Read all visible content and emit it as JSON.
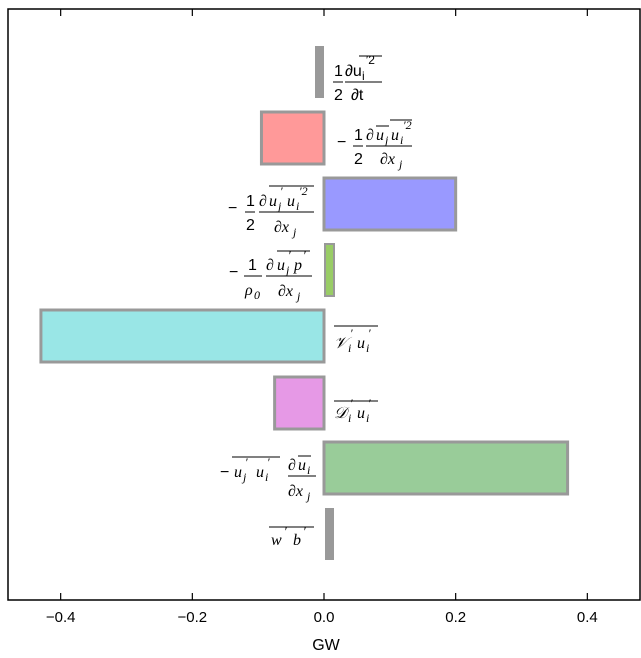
{
  "chart_data": {
    "type": "bar",
    "orientation": "horizontal",
    "xlabel": "GW",
    "xlim": [
      -0.48,
      0.48
    ],
    "xticks": [
      -0.4,
      -0.2,
      0.0,
      0.2,
      0.4
    ],
    "xtick_labels": [
      "−0.4",
      "−0.2",
      "0.0",
      "0.2",
      "0.4"
    ],
    "grid": false,
    "categories": [
      "½ ∂u′ᵢ²/∂t",
      "−½ ∂(ūⱼ u′ᵢ²)/∂xⱼ",
      "−½ ∂(u′ⱼ u′ᵢ²)/∂xⱼ",
      "−(1/ρ₀) ∂(u′ⱼ p′)/∂xⱼ",
      "V′ᵢ u′ᵢ",
      "D′ᵢ u′ᵢ",
      "−u′ⱼ u′ᵢ ∂ūᵢ/∂xⱼ",
      "w′ b′"
    ],
    "values": [
      -0.01,
      -0.095,
      0.2,
      0.005,
      -0.43,
      -0.075,
      0.37,
      0.015
    ],
    "colors": [
      "#999999",
      "#ff9999",
      "#9999ff",
      "#99cc66",
      "#99e6e6",
      "#e699e6",
      "#99cc99",
      "#999999"
    ],
    "thin_bar": [
      true,
      false,
      false,
      true,
      false,
      false,
      false,
      true
    ]
  }
}
